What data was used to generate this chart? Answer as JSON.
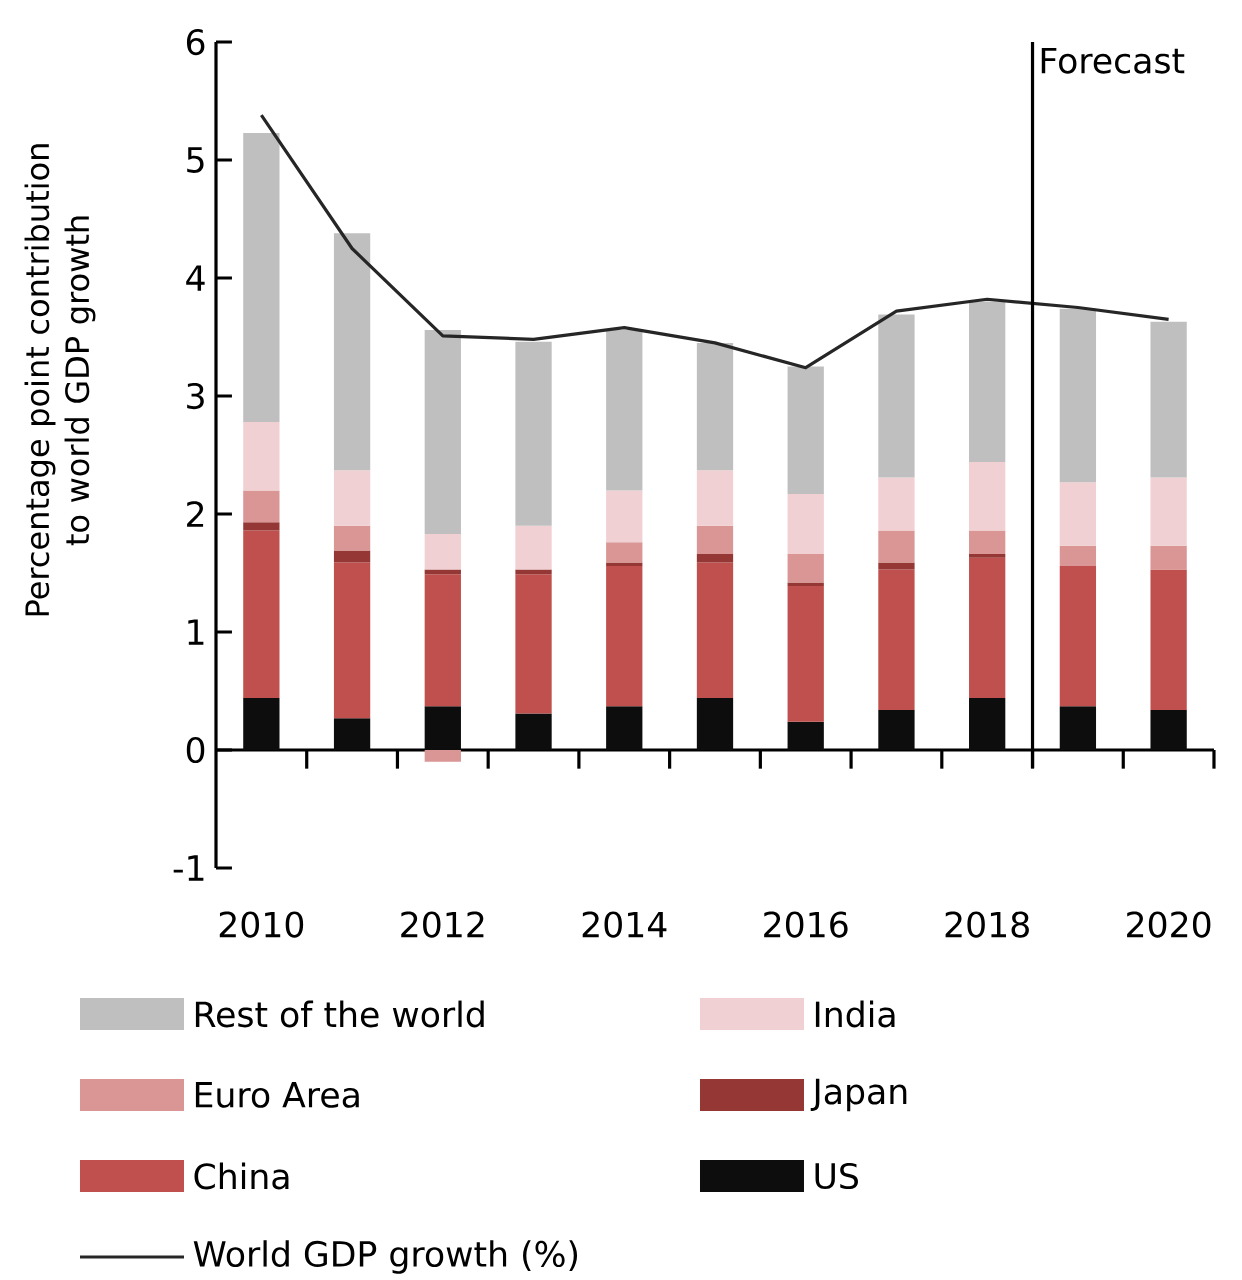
{
  "chart_data": {
    "type": "bar",
    "stacked": true,
    "ylabel": "Percentage point contribution to world GDP growth",
    "x": [
      2010,
      2011,
      2012,
      2013,
      2014,
      2015,
      2016,
      2017,
      2018,
      2019,
      2020
    ],
    "xlim": [
      2009.5,
      2020.5
    ],
    "xticks": [
      2010,
      {
        "value": 2010.5,
        "label": null
      },
      {
        "value": 2011.5,
        "label": null
      },
      2012,
      {
        "value": 2012.5,
        "label": null
      },
      {
        "value": 2013.5,
        "label": null
      },
      2014,
      {
        "value": 2014.5,
        "label": null
      },
      {
        "value": 2015.5,
        "label": null
      },
      2016,
      {
        "value": 2016.5,
        "label": null
      },
      {
        "value": 2017.5,
        "label": null
      },
      2018,
      {
        "value": 2018.5,
        "label": null
      },
      {
        "value": 2019.5,
        "label": null
      },
      2020,
      {
        "value": 2020.5,
        "label": null
      }
    ],
    "ylim": [
      -1,
      6
    ],
    "yticks": [
      -1,
      0,
      1,
      2,
      3,
      4,
      5,
      6
    ],
    "legend": "bottom",
    "series": [
      {
        "name": "US",
        "color": "#0d0d0d",
        "values": [
          0.44,
          0.27,
          0.37,
          0.31,
          0.37,
          0.44,
          0.24,
          0.34,
          0.44,
          0.37,
          0.34
        ]
      },
      {
        "name": "China",
        "color": "#c0504d",
        "values": [
          1.42,
          1.32,
          1.12,
          1.18,
          1.19,
          1.15,
          1.15,
          1.19,
          1.19,
          1.19,
          1.19
        ]
      },
      {
        "name": "Japan",
        "color": "#953735",
        "values": [
          0.07,
          0.1,
          0.04,
          0.04,
          0.03,
          0.07,
          0.03,
          0.06,
          0.03,
          0,
          0
        ]
      },
      {
        "name": "Euro Area",
        "color": "#d99694",
        "values": [
          0.27,
          0.21,
          -0.1,
          0,
          0.17,
          0.24,
          0.24,
          0.27,
          0.2,
          0.17,
          0.2
        ]
      },
      {
        "name": "India",
        "color": "#f0d0d2",
        "values": [
          0.58,
          0.47,
          0.3,
          0.37,
          0.44,
          0.47,
          0.51,
          0.45,
          0.58,
          0.54,
          0.58
        ]
      },
      {
        "name": "Rest of the world",
        "color": "#bfbfbf",
        "values": [
          2.45,
          2.01,
          1.73,
          1.56,
          1.36,
          1.08,
          1.08,
          1.38,
          1.36,
          1.47,
          1.32
        ]
      },
      {
        "name": "World GDP growth (%)",
        "type": "line",
        "color": "#262626",
        "values": [
          5.38,
          4.25,
          3.51,
          3.48,
          3.58,
          3.45,
          3.24,
          3.72,
          3.82,
          3.75,
          3.65
        ]
      }
    ],
    "ref_lines": [
      {
        "axis": "x",
        "value": 2018.5,
        "label": "Forecast",
        "color": "#000000"
      }
    ]
  }
}
